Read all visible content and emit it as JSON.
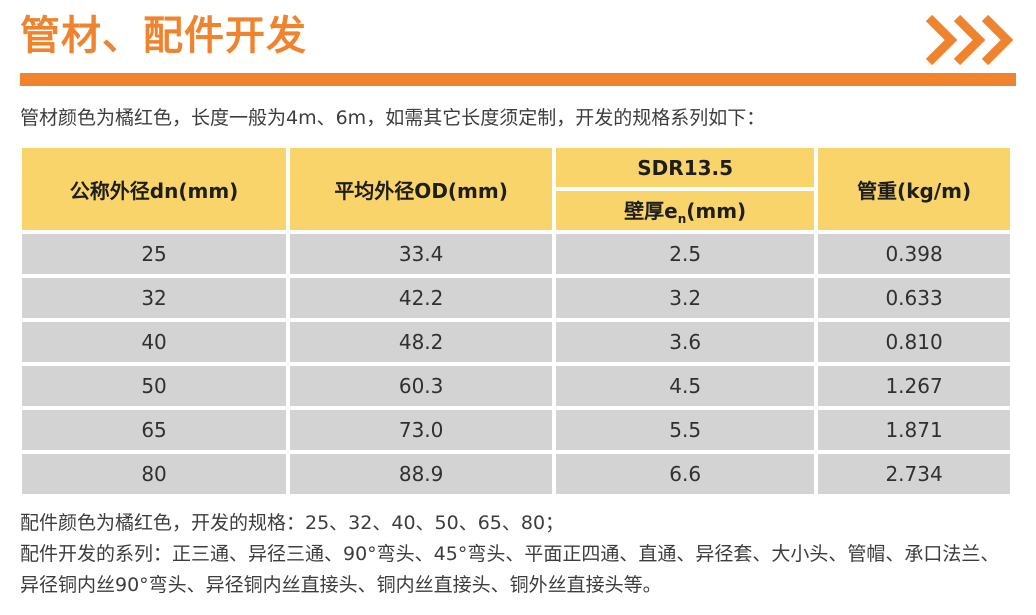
{
  "colors": {
    "accent": "#F0832D",
    "header_yellow": "#F8D46B",
    "row_gray": "#D3D3D4"
  },
  "header": {
    "title": "管材、配件开发",
    "chevrons_icon": "triple-right-chevron"
  },
  "intro": "管材颜色为橘红色，长度一般为4m、6m，如需其它长度须定制，开发的规格系列如下：",
  "table": {
    "headers": {
      "dn": "公称外径dn(mm)",
      "od": "平均外径OD(mm)",
      "sdr_group": "SDR13.5",
      "wall_prefix": "壁厚e",
      "wall_sub": "n",
      "wall_suffix": "(mm)",
      "weight": "管重(kg/m)"
    },
    "rows": [
      [
        "25",
        "33.4",
        "2.5",
        "0.398"
      ],
      [
        "32",
        "42.2",
        "3.2",
        "0.633"
      ],
      [
        "40",
        "48.2",
        "3.6",
        "0.810"
      ],
      [
        "50",
        "60.3",
        "4.5",
        "1.267"
      ],
      [
        "65",
        "73.0",
        "5.5",
        "1.871"
      ],
      [
        "80",
        "88.9",
        "6.6",
        "2.734"
      ]
    ]
  },
  "footer": {
    "line1": "配件颜色为橘红色，开发的规格：25、32、40、50、65、80；",
    "line2": "配件开发的系列：正三通、异径三通、90°弯头、45°弯头、平面正四通、直通、异径套、大小头、管帽、承口法兰、异径铜内丝90°弯头、异径铜内丝直接头、铜内丝直接头、铜外丝直接头等。"
  }
}
